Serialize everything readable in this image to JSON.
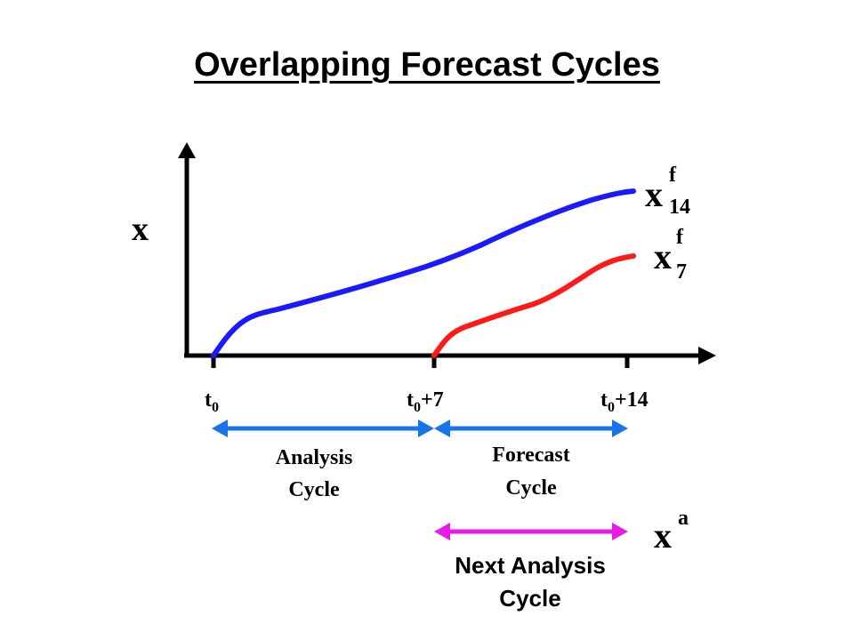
{
  "title": "Overlapping Forecast Cycles",
  "y_axis_label": "x",
  "ticks": [
    {
      "base": "t",
      "sub": "0",
      "suffix": ""
    },
    {
      "base": "t",
      "sub": "0",
      "suffix": "+7"
    },
    {
      "base": "t",
      "sub": "0",
      "suffix": "+14"
    }
  ],
  "curves": [
    {
      "base": "x",
      "sup": "f",
      "sub": "14",
      "color": "#1a1aff"
    },
    {
      "base": "x",
      "sup": "f",
      "sub": "7",
      "color": "#ff1a1a"
    }
  ],
  "cycles": {
    "analysis": {
      "line1": "Analysis",
      "line2": "Cycle",
      "color": "#1a73e8"
    },
    "forecast": {
      "line1": "Forecast",
      "line2": "Cycle",
      "color": "#1a73e8"
    },
    "next_analysis": {
      "line1": "Next Analysis",
      "line2": "Cycle",
      "color": "#e81ae8"
    }
  },
  "analysis_symbol": {
    "base": "x",
    "sup": "a"
  }
}
